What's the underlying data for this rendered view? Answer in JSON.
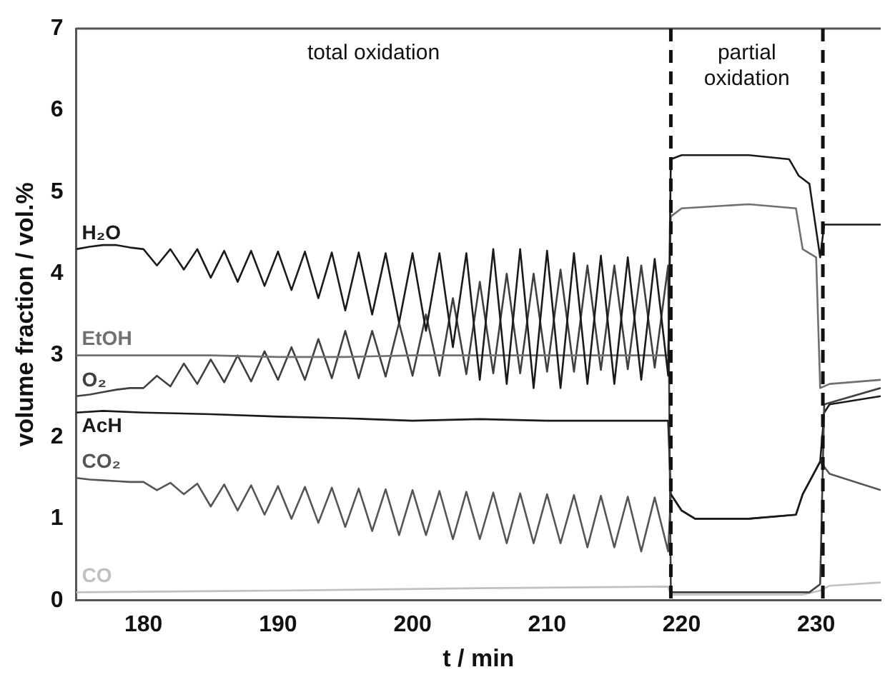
{
  "chart_data": {
    "type": "line",
    "xlabel": "t / min",
    "ylabel": "volume fraction / vol.%",
    "xlim": [
      175,
      234.8
    ],
    "xticks": [
      180,
      190,
      200,
      210,
      220,
      230
    ],
    "ylim": [
      0,
      7
    ],
    "yticks": [
      0,
      1,
      2,
      3,
      4,
      5,
      6,
      7
    ],
    "grid": false,
    "legend": false,
    "marker": "none",
    "annotations": [
      "total oxidation",
      "partial oxidation"
    ],
    "ref_lines": [
      {
        "axis": "x",
        "value": 219.2,
        "color": "#111111",
        "line_style": "dashed"
      },
      {
        "axis": "x",
        "value": 230.5,
        "color": "#111111",
        "line_style": "dashed"
      }
    ],
    "series": [
      {
        "name": "H₂O",
        "color": "#1a1a1a",
        "x": [
          175,
          176,
          177,
          178,
          179,
          180,
          181,
          182,
          183,
          184,
          185,
          186,
          187,
          188,
          189,
          190,
          191,
          192,
          193,
          194,
          195,
          196,
          197,
          198,
          199,
          200,
          201,
          202,
          203,
          204,
          205,
          206,
          207,
          208,
          209,
          210,
          211,
          212,
          213,
          214,
          215,
          216,
          217,
          218,
          219,
          219.2,
          220,
          225,
          228,
          228.7,
          229.5,
          230.3,
          230.6,
          234.8
        ],
        "values": [
          4.3,
          4.33,
          4.35,
          4.35,
          4.32,
          4.3,
          4.1,
          4.3,
          4.05,
          4.3,
          3.95,
          4.28,
          3.9,
          4.28,
          3.85,
          4.27,
          3.8,
          4.27,
          3.7,
          4.26,
          3.55,
          4.26,
          3.5,
          4.25,
          3.4,
          4.25,
          3.3,
          4.25,
          3.1,
          4.25,
          2.7,
          4.3,
          2.65,
          4.3,
          2.6,
          4.28,
          2.6,
          4.25,
          2.65,
          4.22,
          2.65,
          4.2,
          2.7,
          4.18,
          2.75,
          5.4,
          5.45,
          5.45,
          5.4,
          5.2,
          5.1,
          4.2,
          4.6,
          4.6
        ]
      },
      {
        "name": "EtOH",
        "color": "#707070",
        "x": [
          175,
          180,
          185,
          190,
          195,
          200,
          205,
          210,
          215,
          219,
          219.2,
          220,
          225,
          228.5,
          229,
          230,
          230.3,
          231,
          234.8
        ],
        "values": [
          3.0,
          3.0,
          3.0,
          2.98,
          2.98,
          3.0,
          3.0,
          3.0,
          3.0,
          3.0,
          4.7,
          4.8,
          4.85,
          4.8,
          4.3,
          4.2,
          2.6,
          2.65,
          2.7
        ]
      },
      {
        "name": "O₂",
        "color": "#404040",
        "x": [
          175,
          176,
          177,
          178,
          179,
          180,
          181,
          182,
          183,
          184,
          185,
          186,
          187,
          188,
          189,
          190,
          191,
          192,
          193,
          194,
          195,
          196,
          197,
          198,
          199,
          200,
          201,
          202,
          203,
          204,
          205,
          206,
          207,
          208,
          209,
          210,
          211,
          212,
          213,
          214,
          215,
          216,
          217,
          218,
          219,
          219.2,
          220,
          229.5,
          230.3,
          230.6,
          234.8
        ],
        "values": [
          2.5,
          2.52,
          2.55,
          2.58,
          2.6,
          2.6,
          2.75,
          2.62,
          2.9,
          2.65,
          2.95,
          2.67,
          3.0,
          2.68,
          3.05,
          2.7,
          3.1,
          2.7,
          3.2,
          2.72,
          3.3,
          2.72,
          3.3,
          2.74,
          3.4,
          2.75,
          3.5,
          2.75,
          3.7,
          2.77,
          3.9,
          2.78,
          4.0,
          2.78,
          4.0,
          2.8,
          4.05,
          2.8,
          4.1,
          2.82,
          4.1,
          2.83,
          4.1,
          2.85,
          4.1,
          0.1,
          0.1,
          0.1,
          0.2,
          2.4,
          2.6
        ]
      },
      {
        "name": "AcH",
        "color": "#1a1a1a",
        "x": [
          175,
          177,
          180,
          185,
          190,
          195,
          200,
          205,
          210,
          215,
          219,
          219.2,
          220,
          221,
          225,
          228.5,
          229,
          230.3,
          230.6,
          231,
          234.8
        ],
        "values": [
          2.3,
          2.32,
          2.3,
          2.28,
          2.25,
          2.23,
          2.2,
          2.22,
          2.2,
          2.2,
          2.2,
          1.3,
          1.1,
          1.0,
          1.0,
          1.05,
          1.3,
          1.7,
          2.3,
          2.4,
          2.5
        ]
      },
      {
        "name": "CO₂",
        "color": "#555555",
        "x": [
          175,
          176,
          177,
          178,
          179,
          180,
          181,
          182,
          183,
          184,
          185,
          186,
          187,
          188,
          189,
          190,
          191,
          192,
          193,
          194,
          195,
          196,
          197,
          198,
          199,
          200,
          201,
          202,
          203,
          204,
          205,
          206,
          207,
          208,
          209,
          210,
          211,
          212,
          213,
          214,
          215,
          216,
          217,
          218,
          219,
          219.2,
          220,
          221,
          225,
          228.5,
          229,
          230.3,
          231,
          234.8
        ],
        "values": [
          1.5,
          1.48,
          1.47,
          1.46,
          1.45,
          1.45,
          1.35,
          1.44,
          1.3,
          1.43,
          1.15,
          1.42,
          1.1,
          1.41,
          1.05,
          1.4,
          1.0,
          1.39,
          0.95,
          1.38,
          0.9,
          1.37,
          0.85,
          1.36,
          0.8,
          1.35,
          0.8,
          1.34,
          0.75,
          1.33,
          0.75,
          1.32,
          0.7,
          1.31,
          0.7,
          1.3,
          0.7,
          1.29,
          0.65,
          1.28,
          0.65,
          1.27,
          0.6,
          1.26,
          0.6,
          1.3,
          1.1,
          1.0,
          1.0,
          1.05,
          1.3,
          1.7,
          1.55,
          1.35
        ]
      },
      {
        "name": "CO",
        "color": "#c0c0c0",
        "x": [
          175,
          190,
          205,
          219,
          219.2,
          229,
          230.3,
          231,
          234.8
        ],
        "values": [
          0.1,
          0.12,
          0.15,
          0.17,
          0.07,
          0.07,
          0.12,
          0.18,
          0.22
        ]
      }
    ]
  }
}
